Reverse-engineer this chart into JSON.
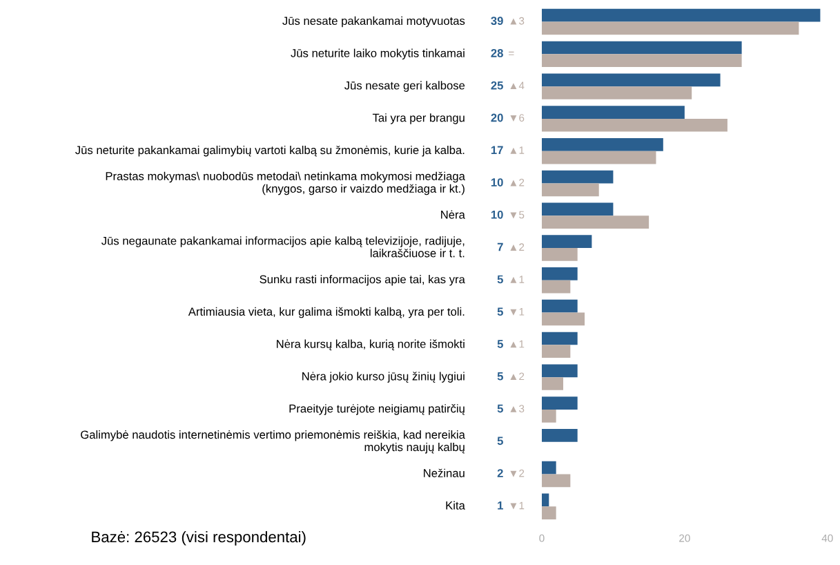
{
  "chart_data": {
    "type": "bar",
    "orientation": "horizontal",
    "categories": [
      "Jūs nesate pakankamai motyvuotas",
      "Jūs neturite laiko mokytis tinkamai",
      "Jūs nesate geri kalbose",
      "Tai yra per brangu",
      "Jūs neturite pakankamai galimybių vartoti kalbą su žmonėmis, kurie ja kalba.",
      "Prastas mokymas\\ nuobodūs metodai\\ netinkama mokymosi medžiaga\n(knygos, garso ir vaizdo medžiaga ir kt.)",
      "Nėra",
      "Jūs negaunate pakankamai informacijos apie kalbą televizijoje, radijuje,\nlaikraščiuose ir t. t.",
      "Sunku rasti informacijos apie tai, kas yra",
      "Artimiausia vieta, kur galima išmokti kalbą, yra per toli.",
      "Nėra kursų kalba, kurią norite išmokti",
      "Nėra jokio kurso jūsų žinių lygiui",
      "Praeityje turėjote neigiamų patirčių",
      "Galimybė naudotis internetinėmis vertimo priemonėmis reiškia, kad nereikia\nmokytis naujų kalbų",
      "Nežinau",
      "Kita"
    ],
    "series": [
      {
        "color": "#2a5f8f",
        "values": [
          39,
          28,
          25,
          20,
          17,
          10,
          10,
          7,
          5,
          5,
          5,
          5,
          5,
          5,
          2,
          1
        ],
        "value_labels": [
          "39",
          "28",
          "25",
          "20",
          "17",
          "10",
          "10",
          "7",
          "5",
          "5",
          "5",
          "5",
          "5",
          "5",
          "2",
          "1"
        ]
      },
      {
        "color": "#bcaea6",
        "values": [
          36,
          28,
          21,
          26,
          16,
          8,
          15,
          5,
          4,
          6,
          4,
          3,
          2,
          null,
          4,
          2
        ]
      }
    ],
    "xlim": [
      0,
      40
    ],
    "xticks": [
      0,
      20,
      40
    ],
    "grid": false,
    "legend": false,
    "annotations": [
      "Bazė: 26523 (visi respondentai)",
      "▲3",
      "=",
      "▲4",
      "▼6",
      "▲1",
      "▲2",
      "▼5",
      "▲2",
      "▲1",
      "▼1",
      "▲1",
      "▲2",
      "▲3",
      "▼2",
      "▼1"
    ]
  }
}
